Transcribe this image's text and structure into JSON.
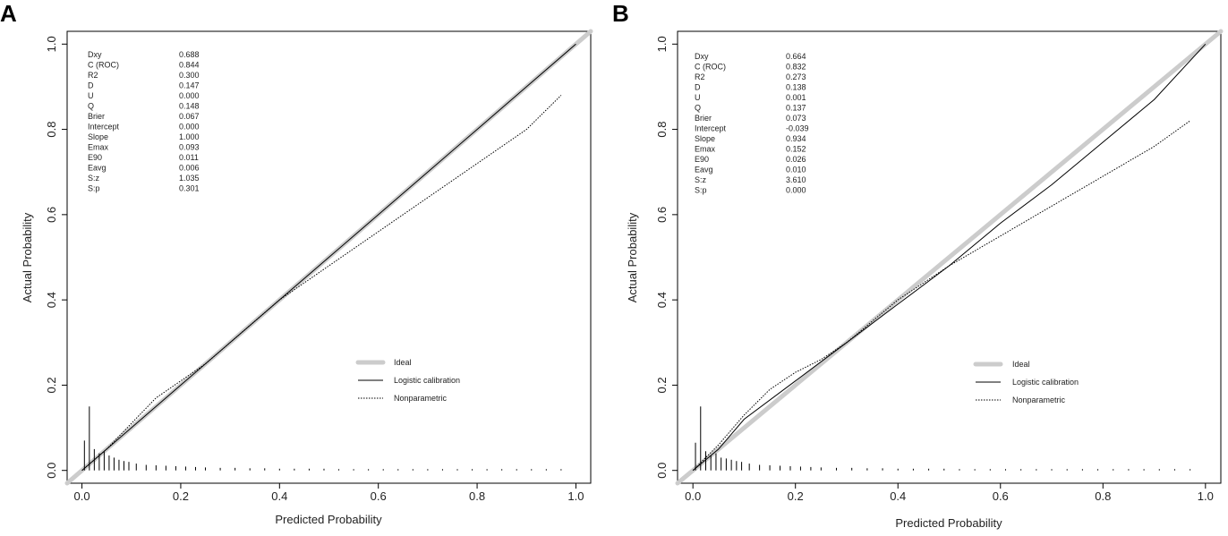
{
  "chart_data": [
    {
      "type": "line",
      "panel_label": "A",
      "xlabel": "Predicted Probability",
      "ylabel": "Actual Probability",
      "xlim": [
        -0.03,
        1.03
      ],
      "ylim": [
        -0.03,
        1.03
      ],
      "xticks": [
        "0.0",
        "0.2",
        "0.4",
        "0.6",
        "0.8",
        "1.0"
      ],
      "yticks": [
        "0.0",
        "0.2",
        "0.4",
        "0.6",
        "0.8",
        "1.0"
      ],
      "grid": false,
      "legend_position": "lower-right",
      "stats": [
        {
          "name": "Dxy",
          "value": "0.688"
        },
        {
          "name": "C (ROC)",
          "value": "0.844"
        },
        {
          "name": "R2",
          "value": "0.300"
        },
        {
          "name": "D",
          "value": "0.147"
        },
        {
          "name": "U",
          "value": "0.000"
        },
        {
          "name": "Q",
          "value": "0.148"
        },
        {
          "name": "Brier",
          "value": "0.067"
        },
        {
          "name": "Intercept",
          "value": "0.000"
        },
        {
          "name": "Slope",
          "value": "1.000"
        },
        {
          "name": "Emax",
          "value": "0.093"
        },
        {
          "name": "E90",
          "value": "0.011"
        },
        {
          "name": "Eavg",
          "value": "0.006"
        },
        {
          "name": "S:z",
          "value": "1.035"
        },
        {
          "name": "S:p",
          "value": "0.301"
        }
      ],
      "series": [
        {
          "name": "Ideal",
          "style": "thick-gray",
          "color": "#cccccc",
          "x": [
            -0.03,
            1.03
          ],
          "y": [
            -0.03,
            1.03
          ]
        },
        {
          "name": "Logistic calibration",
          "style": "solid",
          "color": "#000000",
          "x": [
            0.0,
            0.05,
            0.1,
            0.2,
            0.3,
            0.4,
            0.5,
            0.6,
            0.7,
            0.8,
            0.9,
            1.0
          ],
          "y": [
            0.0,
            0.05,
            0.1,
            0.2,
            0.3,
            0.4,
            0.5,
            0.6,
            0.7,
            0.8,
            0.9,
            1.0
          ]
        },
        {
          "name": "Nonparametric",
          "style": "dotted",
          "color": "#000000",
          "x": [
            0.0,
            0.05,
            0.1,
            0.15,
            0.2,
            0.25,
            0.3,
            0.35,
            0.4,
            0.45,
            0.5,
            0.6,
            0.7,
            0.8,
            0.9,
            0.97
          ],
          "y": [
            0.0,
            0.05,
            0.11,
            0.17,
            0.21,
            0.25,
            0.3,
            0.35,
            0.4,
            0.44,
            0.48,
            0.56,
            0.64,
            0.72,
            0.8,
            0.88
          ]
        }
      ],
      "histogram": {
        "x": [
          0.005,
          0.015,
          0.025,
          0.035,
          0.045,
          0.055,
          0.065,
          0.075,
          0.085,
          0.095,
          0.11,
          0.13,
          0.15,
          0.17,
          0.19,
          0.21,
          0.23,
          0.25,
          0.28,
          0.31,
          0.34,
          0.37,
          0.4,
          0.43,
          0.46,
          0.49,
          0.52,
          0.55,
          0.58,
          0.61,
          0.64,
          0.67,
          0.7,
          0.73,
          0.76,
          0.79,
          0.82,
          0.85,
          0.88,
          0.91,
          0.94,
          0.97
        ],
        "height": [
          0.07,
          0.15,
          0.05,
          0.04,
          0.045,
          0.035,
          0.03,
          0.025,
          0.022,
          0.02,
          0.016,
          0.013,
          0.012,
          0.011,
          0.01,
          0.009,
          0.008,
          0.007,
          0.006,
          0.006,
          0.005,
          0.005,
          0.004,
          0.004,
          0.004,
          0.004,
          0.003,
          0.003,
          0.003,
          0.003,
          0.003,
          0.003,
          0.003,
          0.003,
          0.003,
          0.003,
          0.003,
          0.003,
          0.003,
          0.003,
          0.003,
          0.003
        ]
      }
    },
    {
      "type": "line",
      "panel_label": "B",
      "xlabel": "Predicted Probability",
      "ylabel": "Actual Probability",
      "xlim": [
        -0.03,
        1.03
      ],
      "ylim": [
        -0.03,
        1.03
      ],
      "xticks": [
        "0.0",
        "0.2",
        "0.4",
        "0.6",
        "0.8",
        "1.0"
      ],
      "yticks": [
        "0.0",
        "0.2",
        "0.4",
        "0.6",
        "0.8",
        "1.0"
      ],
      "grid": false,
      "legend_position": "lower-right",
      "stats": [
        {
          "name": "Dxy",
          "value": "0.664"
        },
        {
          "name": "C (ROC)",
          "value": "0.832"
        },
        {
          "name": "R2",
          "value": "0.273"
        },
        {
          "name": "D",
          "value": "0.138"
        },
        {
          "name": "U",
          "value": "0.001"
        },
        {
          "name": "Q",
          "value": "0.137"
        },
        {
          "name": "Brier",
          "value": "0.073"
        },
        {
          "name": "Intercept",
          "value": "-0.039"
        },
        {
          "name": "Slope",
          "value": "0.934"
        },
        {
          "name": "Emax",
          "value": "0.152"
        },
        {
          "name": "E90",
          "value": "0.026"
        },
        {
          "name": "Eavg",
          "value": "0.010"
        },
        {
          "name": "S:z",
          "value": "3.610"
        },
        {
          "name": "S:p",
          "value": "0.000"
        }
      ],
      "series": [
        {
          "name": "Ideal",
          "style": "thick-gray",
          "color": "#cccccc",
          "x": [
            -0.03,
            1.03
          ],
          "y": [
            -0.03,
            1.03
          ]
        },
        {
          "name": "Logistic calibration",
          "style": "solid",
          "color": "#000000",
          "x": [
            0.0,
            0.05,
            0.1,
            0.2,
            0.3,
            0.4,
            0.5,
            0.6,
            0.7,
            0.8,
            0.9,
            1.0
          ],
          "y": [
            0.0,
            0.05,
            0.12,
            0.21,
            0.3,
            0.39,
            0.48,
            0.58,
            0.67,
            0.77,
            0.87,
            1.0
          ]
        },
        {
          "name": "Nonparametric",
          "style": "dotted",
          "color": "#000000",
          "x": [
            0.0,
            0.05,
            0.1,
            0.15,
            0.2,
            0.25,
            0.3,
            0.35,
            0.4,
            0.45,
            0.5,
            0.6,
            0.7,
            0.8,
            0.9,
            0.97
          ],
          "y": [
            0.0,
            0.06,
            0.13,
            0.19,
            0.23,
            0.26,
            0.3,
            0.35,
            0.4,
            0.44,
            0.48,
            0.55,
            0.62,
            0.69,
            0.76,
            0.82
          ]
        }
      ],
      "histogram": {
        "x": [
          0.005,
          0.015,
          0.025,
          0.035,
          0.045,
          0.055,
          0.065,
          0.075,
          0.085,
          0.095,
          0.11,
          0.13,
          0.15,
          0.17,
          0.19,
          0.21,
          0.23,
          0.25,
          0.28,
          0.31,
          0.34,
          0.37,
          0.4,
          0.43,
          0.46,
          0.49,
          0.52,
          0.55,
          0.58,
          0.61,
          0.64,
          0.67,
          0.7,
          0.73,
          0.76,
          0.79,
          0.82,
          0.85,
          0.88,
          0.91,
          0.94,
          0.97
        ],
        "height": [
          0.065,
          0.15,
          0.045,
          0.035,
          0.04,
          0.03,
          0.028,
          0.025,
          0.022,
          0.02,
          0.016,
          0.013,
          0.012,
          0.011,
          0.01,
          0.009,
          0.008,
          0.007,
          0.006,
          0.006,
          0.005,
          0.005,
          0.004,
          0.004,
          0.004,
          0.004,
          0.003,
          0.003,
          0.003,
          0.003,
          0.003,
          0.003,
          0.003,
          0.003,
          0.003,
          0.003,
          0.003,
          0.003,
          0.003,
          0.003,
          0.003,
          0.003
        ]
      }
    }
  ]
}
